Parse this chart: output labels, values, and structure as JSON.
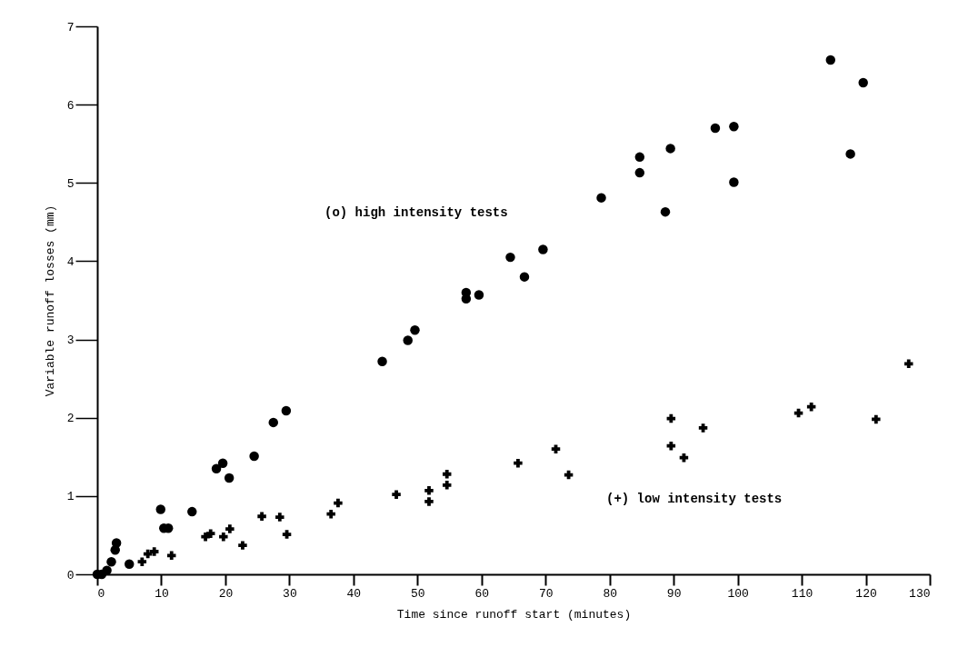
{
  "chart_data": {
    "type": "scatter",
    "xlabel": "Time since runoff start (minutes)",
    "ylabel": "Variable runoff losses (mm)",
    "xlim": [
      0,
      130
    ],
    "ylim": [
      0,
      7
    ],
    "xticks": [
      0,
      10,
      20,
      30,
      40,
      50,
      60,
      70,
      80,
      90,
      100,
      110,
      120,
      130
    ],
    "yticks": [
      0,
      1,
      2,
      3,
      4,
      5,
      6,
      7
    ],
    "grid": false,
    "series": [
      {
        "name": "(o) high intensity tests",
        "color": "#000000",
        "marker": "circle",
        "x": [
          0,
          0.7,
          1.5,
          2.2,
          2.8,
          3,
          5,
          9.9,
          10.4,
          11.1,
          14.8,
          18.6,
          19.6,
          20.6,
          24.5,
          27.5,
          29.5,
          44.5,
          48.5,
          49.6,
          57.6,
          57.6,
          59.6,
          64.5,
          66.7,
          69.6,
          78.7,
          84.7,
          84.7,
          88.7,
          89.5,
          96.5,
          99.4,
          99.4,
          114.5,
          117.6,
          119.6
        ],
        "values": [
          0,
          0,
          0.05,
          0.16,
          0.31,
          0.4,
          0.13,
          0.83,
          0.59,
          0.59,
          0.8,
          1.35,
          1.42,
          1.23,
          1.51,
          1.94,
          2.09,
          2.72,
          2.99,
          3.12,
          3.6,
          3.52,
          3.57,
          4.05,
          3.8,
          4.15,
          4.81,
          5.33,
          5.13,
          4.63,
          5.44,
          5.7,
          5.72,
          5.01,
          6.57,
          5.37,
          6.28
        ]
      },
      {
        "name": "(+) low intensity tests",
        "color": "#000000",
        "marker": "cross",
        "x": [
          7,
          7.9,
          8.9,
          11.6,
          16.9,
          17.7,
          19.7,
          20.7,
          22.7,
          25.7,
          28.5,
          29.6,
          36.5,
          37.6,
          46.7,
          51.8,
          51.8,
          54.6,
          54.6,
          65.7,
          71.6,
          73.6,
          89.6,
          89.6,
          91.6,
          94.6,
          109.5,
          111.5,
          121.6,
          126.7
        ],
        "values": [
          0.16,
          0.26,
          0.29,
          0.24,
          0.48,
          0.52,
          0.48,
          0.58,
          0.37,
          0.74,
          0.73,
          0.51,
          0.77,
          0.91,
          1.02,
          1.07,
          0.93,
          1.28,
          1.14,
          1.42,
          1.6,
          1.27,
          1.99,
          1.64,
          1.49,
          1.87,
          2.06,
          2.14,
          1.98,
          2.69
        ]
      }
    ]
  }
}
